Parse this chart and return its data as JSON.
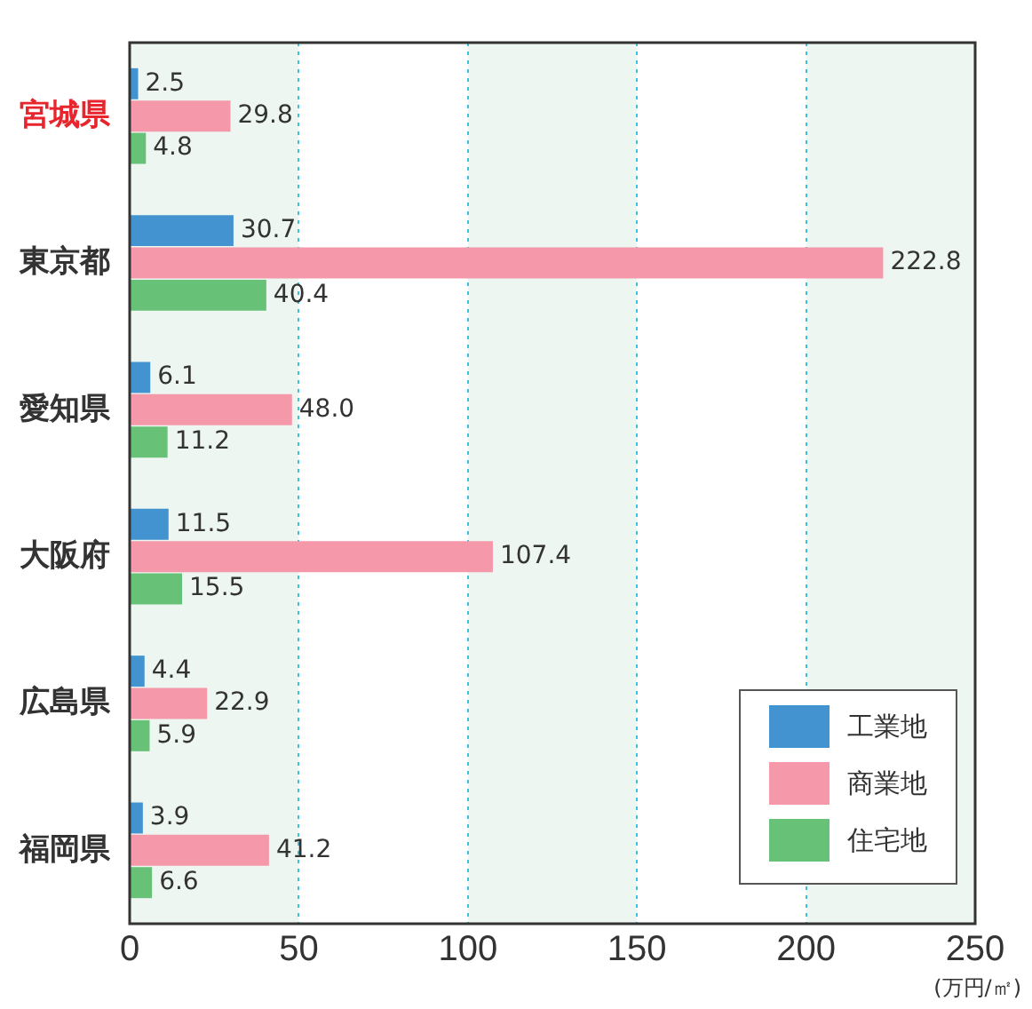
{
  "chart_data": {
    "type": "bar",
    "orientation": "horizontal",
    "xlabel": "(万円/㎡)",
    "categories": [
      "宮城県",
      "東京都",
      "愛知県",
      "大阪府",
      "広島県",
      "福岡県"
    ],
    "series": [
      {
        "name": "工業地",
        "color": "#4393d0",
        "values": [
          2.5,
          30.7,
          6.1,
          11.5,
          4.4,
          3.9
        ],
        "value_labels": [
          "2.5",
          "30.7",
          "6.1",
          "11.5",
          "4.4",
          "3.9"
        ]
      },
      {
        "name": "商業地",
        "color": "#f498aa",
        "values": [
          29.8,
          222.8,
          48.0,
          107.4,
          22.9,
          41.2
        ],
        "value_labels": [
          "29.8",
          "222.8",
          "48.0",
          "107.4",
          "22.9",
          "41.2"
        ]
      },
      {
        "name": "住宅地",
        "color": "#67c177",
        "values": [
          4.8,
          40.4,
          11.2,
          15.5,
          5.9,
          6.6
        ],
        "value_labels": [
          "4.8",
          "40.4",
          "11.2",
          "15.5",
          "5.9",
          "6.6"
        ]
      }
    ],
    "xlim": [
      0,
      250
    ],
    "xticks": [
      0,
      50,
      100,
      150,
      200,
      250
    ],
    "bands": [
      {
        "axis": "x",
        "from": 0,
        "to": 50,
        "color": "#edf6f0"
      },
      {
        "axis": "x",
        "from": 100,
        "to": 150,
        "color": "#edf6f0"
      },
      {
        "axis": "x",
        "from": 200,
        "to": 250,
        "color": "#edf6f0"
      }
    ],
    "grid": "x",
    "legend": "bottom right"
  }
}
